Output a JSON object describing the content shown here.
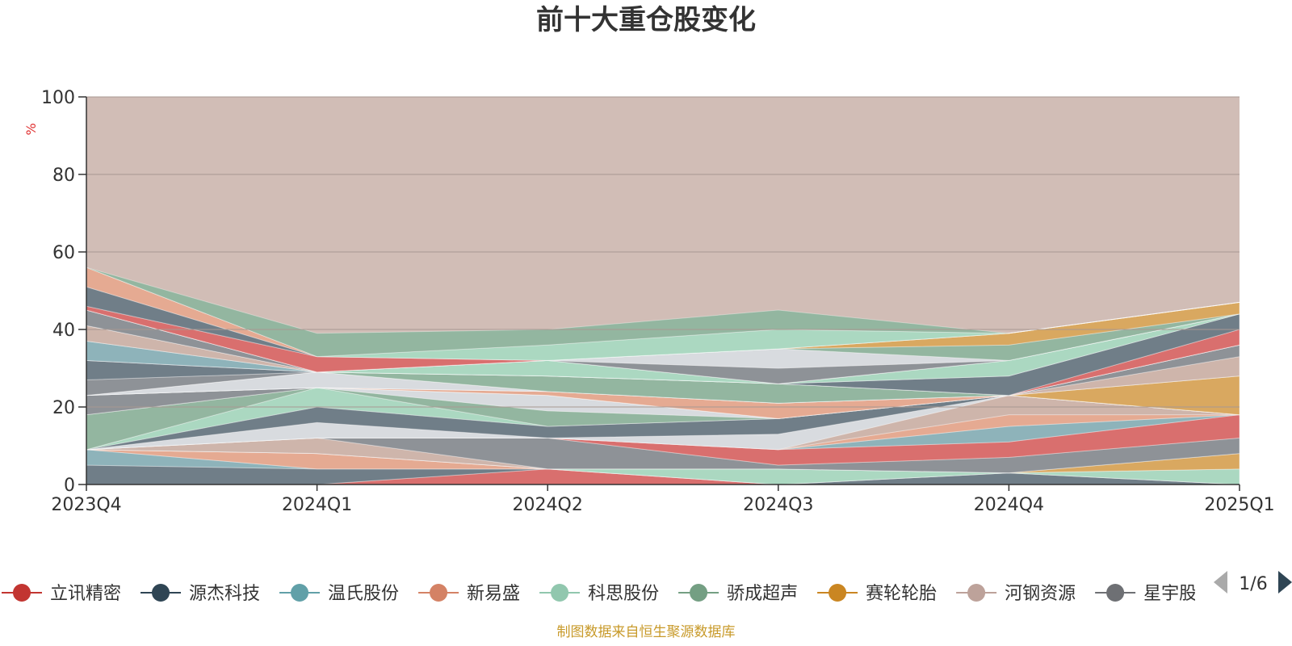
{
  "chart_data": {
    "type": "area",
    "title": "前十大重仓股变化",
    "ylabel": "%",
    "ylim": [
      0,
      100
    ],
    "y_ticks": [
      0,
      20,
      40,
      60,
      80,
      100
    ],
    "x": [
      "2023Q4",
      "2024Q1",
      "2024Q2",
      "2024Q3",
      "2024Q4",
      "2025Q1"
    ],
    "background_color": "#d1bdb6",
    "grid": true,
    "stacked": true,
    "series": [
      {
        "name": "立讯精密",
        "color": "#d96a6a",
        "values": [
          0,
          0,
          4,
          0,
          0,
          0
        ]
      },
      {
        "name": "源杰科技",
        "color": "#6a7a86",
        "values": [
          5,
          4,
          0,
          0,
          3,
          0
        ]
      },
      {
        "name": "温氏股份",
        "color": "#8ab2ba",
        "values": [
          4,
          0,
          0,
          0,
          0,
          0
        ]
      },
      {
        "name": "新易盛",
        "color": "#e6a990",
        "values": [
          0,
          4,
          0,
          0,
          0,
          0
        ]
      },
      {
        "name": "科思股份",
        "color": "#a9d9c2",
        "values": [
          0,
          0,
          0,
          4,
          0,
          4
        ]
      },
      {
        "name": "骄成超声",
        "color": "#8fb59f",
        "values": [
          0,
          0,
          0,
          0,
          0,
          0
        ]
      },
      {
        "name": "赛轮轮胎",
        "color": "#d9a75c",
        "values": [
          0,
          0,
          0,
          0,
          0,
          4
        ]
      },
      {
        "name": "河钢资源",
        "color": "#cdb4ab",
        "values": [
          0,
          4,
          0,
          0,
          0,
          0
        ]
      },
      {
        "name": "星宇股份",
        "color": "#8a8f96",
        "values": [
          0,
          0,
          8,
          1,
          4,
          4
        ]
      },
      {
        "name": "立讯精密",
        "color": "#d96a6a",
        "values": [
          0,
          0,
          0,
          4,
          4,
          6
        ]
      },
      {
        "name": "温氏股份",
        "color": "#8ab2ba",
        "values": [
          0,
          0,
          0,
          0,
          4,
          0
        ]
      },
      {
        "name": "新易盛",
        "color": "#e6a990",
        "values": [
          0,
          0,
          0,
          0,
          3,
          0
        ]
      },
      {
        "name": "河钢资源",
        "color": "#cdb4ab",
        "values": [
          0,
          0,
          0,
          0,
          5,
          0
        ]
      },
      {
        "name": "星宇股份",
        "color": "#d8dce2",
        "values": [
          0,
          4,
          0,
          4,
          0,
          0
        ]
      },
      {
        "name": "源杰科技",
        "color": "#6a7a86",
        "values": [
          0,
          4,
          3,
          4,
          0,
          0
        ]
      },
      {
        "name": "科思股份",
        "color": "#a9d9c2",
        "values": [
          0,
          5,
          0,
          0,
          0,
          0
        ]
      },
      {
        "name": "骄成超声",
        "color": "#8fb59f",
        "values": [
          9,
          0,
          4,
          0,
          0,
          0
        ]
      },
      {
        "name": "星宇股份",
        "color": "#d8dce2",
        "values": [
          0,
          0,
          4,
          0,
          0,
          0
        ]
      },
      {
        "name": "星宇股份",
        "color": "#8a8f96",
        "values": [
          5,
          0,
          0,
          0,
          0,
          0
        ]
      },
      {
        "name": "赛轮轮胎",
        "color": "#d9a75c",
        "values": [
          0,
          0,
          0,
          0,
          0,
          10
        ]
      },
      {
        "name": "新易盛",
        "color": "#e6a990",
        "values": [
          0,
          0,
          1,
          4,
          0,
          0
        ]
      },
      {
        "name": "源杰科技",
        "color": "#6a7a86",
        "values": [
          0,
          0,
          0,
          0,
          0,
          0
        ]
      },
      {
        "name": "河钢资源",
        "color": "#cdb4ab",
        "values": [
          0,
          0,
          0,
          0,
          0,
          5
        ]
      },
      {
        "name": "星宇股份",
        "color": "#8a8f96",
        "values": [
          0,
          0,
          0,
          0,
          0,
          3
        ]
      },
      {
        "name": "星宇股份",
        "color": "#d8dce2",
        "values": [
          0,
          4,
          0,
          0,
          0,
          0
        ]
      },
      {
        "name": "科思股份",
        "color": "#a9d9c2",
        "values": [
          0,
          0,
          0,
          0,
          0,
          0
        ]
      },
      {
        "name": "骄成超声",
        "color": "#8fb59f",
        "values": [
          0,
          0,
          4,
          5,
          0,
          0
        ]
      },
      {
        "name": "星宇股份",
        "color": "#8a8f96",
        "values": [
          4,
          0,
          0,
          0,
          0,
          0
        ]
      },
      {
        "name": "源杰科技",
        "color": "#6a7a86",
        "values": [
          5,
          0,
          0,
          0,
          0,
          0
        ]
      },
      {
        "name": "立讯精密",
        "color": "#d96a6a",
        "values": [
          0,
          0,
          0,
          0,
          0,
          4
        ]
      },
      {
        "name": "源杰科技",
        "color": "#6a7a86",
        "values": [
          0,
          0,
          0,
          0,
          5,
          4
        ]
      },
      {
        "name": "温氏股份",
        "color": "#8ab2ba",
        "values": [
          5,
          0,
          0,
          0,
          0,
          0
        ]
      },
      {
        "name": "科思股份",
        "color": "#a9d9c2",
        "values": [
          0,
          0,
          4,
          0,
          4,
          0
        ]
      },
      {
        "name": "河钢资源",
        "color": "#cdb4ab",
        "values": [
          4,
          0,
          0,
          0,
          0,
          0
        ]
      },
      {
        "name": "温氏股份",
        "color": "#8ab2ba",
        "values": [
          0,
          0,
          0,
          0,
          0,
          0
        ]
      },
      {
        "name": "星宇股份",
        "color": "#8a8f96",
        "values": [
          4,
          0,
          0,
          4,
          0,
          0
        ]
      },
      {
        "name": "星宇股份",
        "color": "#d8dce2",
        "values": [
          0,
          0,
          0,
          5,
          0,
          0
        ]
      },
      {
        "name": "骄成超声",
        "color": "#8fb59f",
        "values": [
          0,
          0,
          0,
          0,
          4,
          0
        ]
      },
      {
        "name": "赛轮轮胎",
        "color": "#d9a75c",
        "values": [
          0,
          0,
          0,
          0,
          3,
          3
        ]
      },
      {
        "name": "立讯精密",
        "color": "#d96a6a",
        "values": [
          1,
          4,
          0,
          0,
          0,
          0
        ]
      },
      {
        "name": "源杰科技",
        "color": "#6a7a86",
        "values": [
          5,
          0,
          0,
          0,
          0,
          0
        ]
      },
      {
        "name": "新易盛",
        "color": "#e6a990",
        "values": [
          5,
          0,
          0,
          0,
          0,
          0
        ]
      },
      {
        "name": "科思股份",
        "color": "#a9d9c2",
        "values": [
          0,
          0,
          4,
          5,
          0,
          0
        ]
      },
      {
        "name": "骄成超声",
        "color": "#8fb59f",
        "values": [
          0,
          6,
          4,
          5,
          0,
          0
        ]
      }
    ]
  },
  "legend": {
    "items": [
      {
        "name": "立讯精密",
        "color": "#c23531"
      },
      {
        "name": "源杰科技",
        "color": "#2f4554"
      },
      {
        "name": "温氏股份",
        "color": "#61a0a8"
      },
      {
        "name": "新易盛",
        "color": "#d48265"
      },
      {
        "name": "科思股份",
        "color": "#91c7ae"
      },
      {
        "name": "骄成超声",
        "color": "#749f83"
      },
      {
        "name": "赛轮轮胎",
        "color": "#ca8622"
      },
      {
        "name": "河钢资源",
        "color": "#bda29a"
      },
      {
        "name": "星宇股份",
        "color": "#6e7074"
      }
    ],
    "page": "1/6"
  },
  "source": "制图数据来自恒生聚源数据库"
}
